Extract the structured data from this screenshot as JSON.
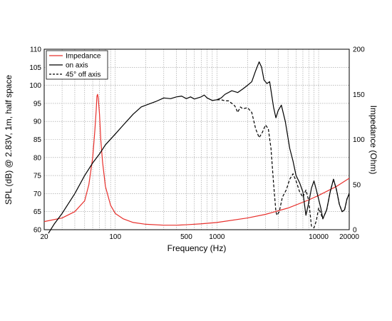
{
  "chart_data": {
    "type": "line",
    "xlabel": "Frequency (Hz)",
    "ylabel": "SPL (dB) @ 2.83V, 1m, half space",
    "y2label": "Impedance (Ohm)",
    "x_scale": "log",
    "xlim": [
      20,
      20000
    ],
    "ylim": [
      60,
      110
    ],
    "y2lim": [
      0,
      200
    ],
    "grid": true,
    "legend_position": "top-left",
    "x_ticks": [
      {
        "value": 20,
        "label": "20"
      },
      {
        "value": 100,
        "label": "100"
      },
      {
        "value": 500,
        "label": "500"
      },
      {
        "value": 1000,
        "label": "1000"
      },
      {
        "value": 10000,
        "label": "10000"
      },
      {
        "value": 20000,
        "label": "20000"
      }
    ],
    "y_ticks": [
      60,
      65,
      70,
      75,
      80,
      85,
      90,
      95,
      100,
      105,
      110
    ],
    "y2_ticks": [
      0,
      50,
      100,
      150,
      200
    ],
    "series": [
      {
        "name": "Impedance",
        "axis": "right",
        "color": "#e8302c",
        "dash": "solid",
        "points": [
          [
            20,
            9
          ],
          [
            30,
            13
          ],
          [
            40,
            20
          ],
          [
            50,
            32
          ],
          [
            55,
            50
          ],
          [
            60,
            80
          ],
          [
            63,
            110
          ],
          [
            65,
            133
          ],
          [
            66,
            148
          ],
          [
            67,
            150
          ],
          [
            68,
            146
          ],
          [
            70,
            128
          ],
          [
            72,
            100
          ],
          [
            75,
            75
          ],
          [
            80,
            48
          ],
          [
            90,
            27
          ],
          [
            100,
            18
          ],
          [
            120,
            12
          ],
          [
            150,
            8
          ],
          [
            200,
            6
          ],
          [
            300,
            5
          ],
          [
            400,
            5
          ],
          [
            500,
            5.5
          ],
          [
            700,
            6.5
          ],
          [
            1000,
            8
          ],
          [
            2000,
            13
          ],
          [
            3000,
            17
          ],
          [
            5000,
            24
          ],
          [
            8000,
            33
          ],
          [
            10000,
            38
          ],
          [
            15000,
            48
          ],
          [
            20000,
            57
          ]
        ]
      },
      {
        "name": "on axis",
        "axis": "left",
        "color": "#000000",
        "dash": "solid",
        "points": [
          [
            22,
            59
          ],
          [
            25,
            61.5
          ],
          [
            30,
            64.5
          ],
          [
            40,
            70
          ],
          [
            50,
            75
          ],
          [
            60,
            78.5
          ],
          [
            70,
            81
          ],
          [
            80,
            83.5
          ],
          [
            100,
            86.5
          ],
          [
            120,
            89
          ],
          [
            150,
            92
          ],
          [
            180,
            94
          ],
          [
            200,
            94.5
          ],
          [
            250,
            95.5
          ],
          [
            300,
            96.5
          ],
          [
            350,
            96.3
          ],
          [
            400,
            96.8
          ],
          [
            450,
            97
          ],
          [
            500,
            96.3
          ],
          [
            550,
            96.8
          ],
          [
            600,
            96.2
          ],
          [
            700,
            96.8
          ],
          [
            750,
            97.3
          ],
          [
            800,
            96.5
          ],
          [
            900,
            95.8
          ],
          [
            1000,
            96
          ],
          [
            1100,
            96.5
          ],
          [
            1200,
            97.5
          ],
          [
            1400,
            98.5
          ],
          [
            1600,
            98
          ],
          [
            1800,
            99
          ],
          [
            2000,
            100
          ],
          [
            2200,
            101
          ],
          [
            2400,
            104
          ],
          [
            2600,
            106.5
          ],
          [
            2750,
            105
          ],
          [
            2900,
            101.5
          ],
          [
            3100,
            100.5
          ],
          [
            3300,
            101
          ],
          [
            3600,
            94
          ],
          [
            3800,
            91
          ],
          [
            4000,
            93
          ],
          [
            4300,
            94.5
          ],
          [
            4700,
            90
          ],
          [
            5200,
            82.5
          ],
          [
            5600,
            79
          ],
          [
            6000,
            75
          ],
          [
            6500,
            73
          ],
          [
            7000,
            70.5
          ],
          [
            7500,
            64
          ],
          [
            8000,
            67.5
          ],
          [
            8500,
            71.5
          ],
          [
            9000,
            73.5
          ],
          [
            9500,
            71
          ],
          [
            10500,
            66
          ],
          [
            11000,
            63
          ],
          [
            12000,
            65.5
          ],
          [
            13000,
            70.5
          ],
          [
            14000,
            74
          ],
          [
            15000,
            71
          ],
          [
            16000,
            67
          ],
          [
            17000,
            65
          ],
          [
            18000,
            65.5
          ],
          [
            19000,
            68.5
          ],
          [
            20000,
            70
          ]
        ]
      },
      {
        "name": "45° off axis",
        "axis": "left",
        "color": "#000000",
        "dash": "dashed",
        "points": [
          [
            1000,
            96
          ],
          [
            1100,
            96
          ],
          [
            1200,
            95.7
          ],
          [
            1300,
            95.7
          ],
          [
            1400,
            95
          ],
          [
            1500,
            94.3
          ],
          [
            1600,
            92.5
          ],
          [
            1700,
            94
          ],
          [
            1800,
            93.5
          ],
          [
            2000,
            93.8
          ],
          [
            2200,
            92.5
          ],
          [
            2400,
            88
          ],
          [
            2600,
            85.5
          ],
          [
            2800,
            87
          ],
          [
            3000,
            89
          ],
          [
            3200,
            88
          ],
          [
            3400,
            82.5
          ],
          [
            3600,
            73
          ],
          [
            3800,
            65
          ],
          [
            3900,
            64
          ],
          [
            4100,
            65
          ],
          [
            4400,
            69
          ],
          [
            4800,
            71
          ],
          [
            5200,
            74
          ],
          [
            5600,
            75.5
          ],
          [
            6000,
            73.5
          ],
          [
            6500,
            70.5
          ],
          [
            7000,
            69
          ],
          [
            7500,
            71
          ],
          [
            8000,
            68
          ],
          [
            8500,
            61
          ],
          [
            9000,
            60.5
          ],
          [
            9500,
            62.5
          ],
          [
            10000,
            66
          ],
          [
            11000,
            63
          ],
          [
            12000,
            65.5
          ],
          [
            13000,
            70.5
          ],
          [
            14000,
            74
          ],
          [
            15000,
            71
          ],
          [
            16000,
            67
          ],
          [
            17000,
            65
          ],
          [
            18000,
            65.5
          ],
          [
            19000,
            68.5
          ],
          [
            20000,
            70
          ]
        ]
      }
    ]
  }
}
